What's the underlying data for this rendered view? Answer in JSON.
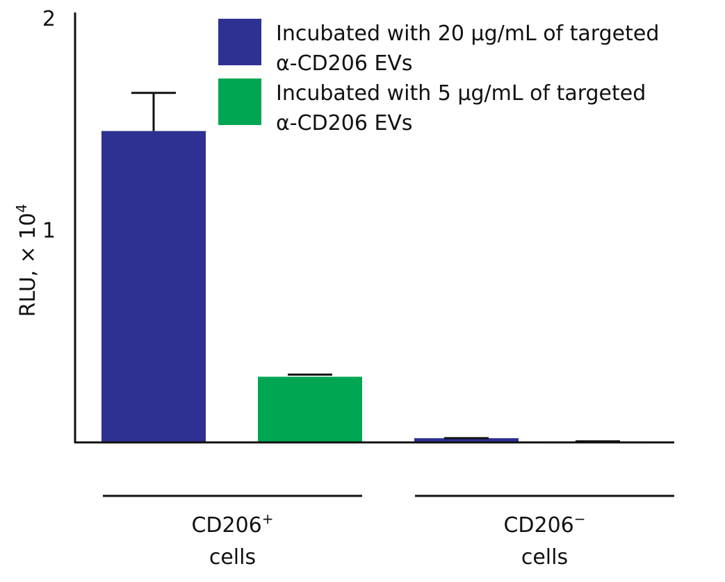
{
  "chart_data": {
    "type": "bar",
    "ylabel": "RLU, × 10",
    "ylabel_exponent": "4",
    "ylim": [
      0,
      2
    ],
    "yticks": [
      "1",
      "2"
    ],
    "grid": false,
    "legend_placement": "top-right",
    "colors": {
      "series_20": "#2e3191",
      "series_5": "#00a651",
      "axis": "#111111"
    },
    "series": [
      {
        "name": "Incubated with 20 µg/mL of targeted α-CD206 EVs",
        "legend_lines": [
          "Incubated with 20 µg/mL of targeted",
          "α-CD206 EVs"
        ],
        "color": "#2e3191",
        "values": [
          1.47,
          0.02
        ],
        "errors": [
          0.18,
          0.0
        ]
      },
      {
        "name": "Incubated with 5 µg/mL of targeted α-CD206 EVs",
        "legend_lines": [
          "Incubated with 5 µg/mL of targeted",
          "α-CD206 EVs"
        ],
        "color": "#00a651",
        "values": [
          0.31,
          0.005
        ],
        "errors": [
          0.01,
          0.0
        ]
      }
    ],
    "groups": [
      {
        "label_main": "CD206",
        "label_sup": "+",
        "label_sub": "cells"
      },
      {
        "label_main": "CD206",
        "label_sup": "−",
        "label_sub": "cells"
      }
    ]
  }
}
